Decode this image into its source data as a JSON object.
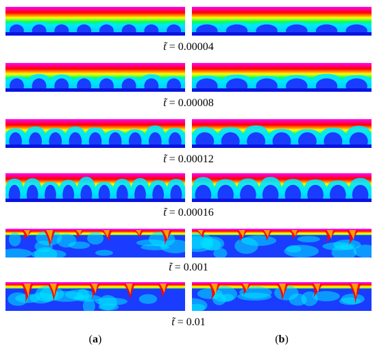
{
  "rows": [
    {
      "time": "0.00004",
      "label": "= 0.00004"
    },
    {
      "time": "0.00008",
      "label": "= 0.00008"
    },
    {
      "time": "0.00012",
      "label": "= 0.00012"
    },
    {
      "time": "0.00016",
      "label": "= 0.00016"
    },
    {
      "time": "0.001",
      "label": "= 0.001"
    },
    {
      "time": "0.01",
      "label": "= 0.01"
    }
  ],
  "time_symbol": "t̃",
  "subfigure_labels": {
    "a": "a",
    "b": "b"
  },
  "colors": {
    "top": "#ff00ff",
    "hot": "#ff0000",
    "warm": "#ffff00",
    "mid": "#00ff60",
    "cool": "#00e5ff",
    "cold": "#1a3cff",
    "bottom": "#0a14e0"
  }
}
